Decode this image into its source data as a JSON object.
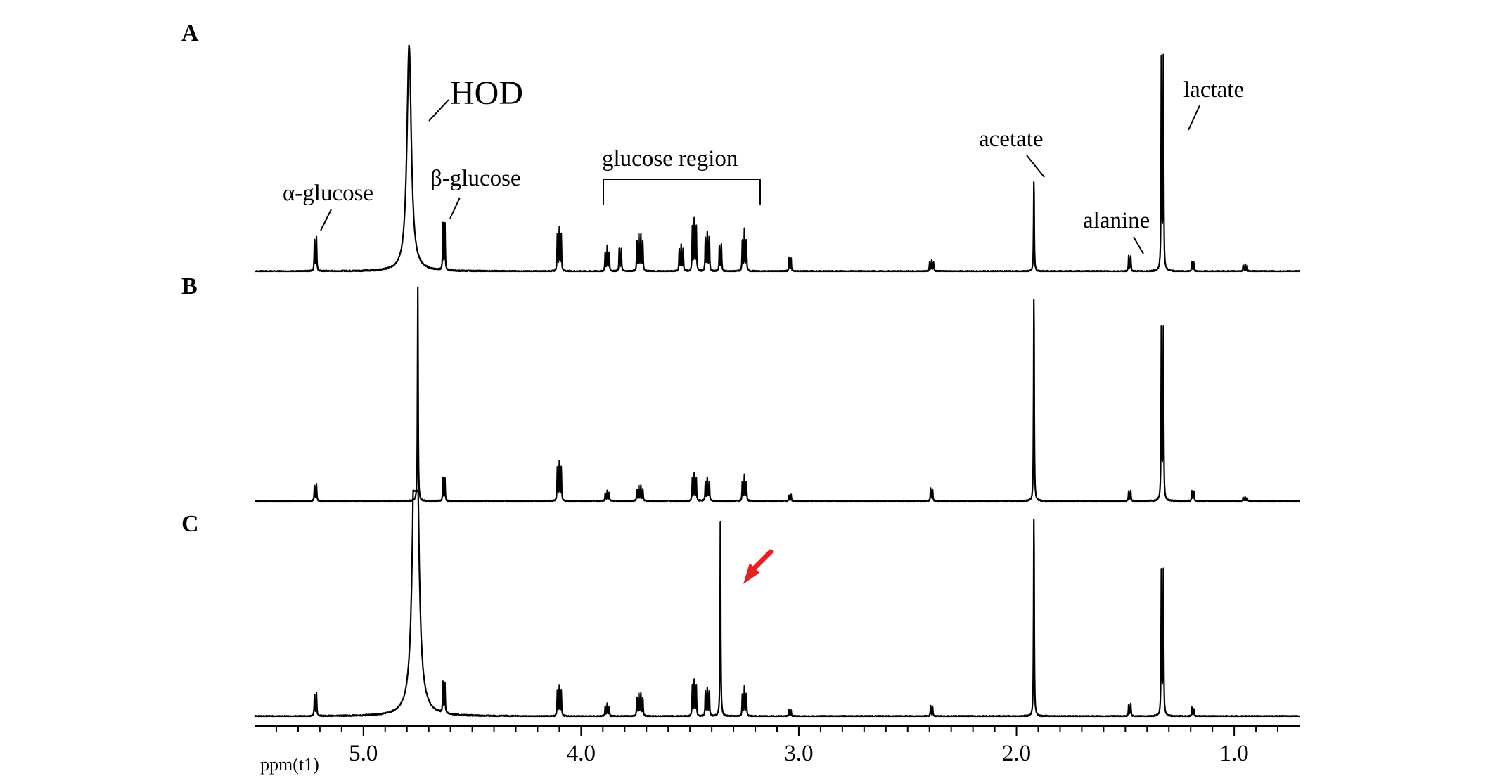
{
  "chart_data": {
    "type": "line",
    "title": "",
    "xlabel": "ppm(t1)",
    "ylabel": "",
    "x_reversed": true,
    "xlim": [
      5.5,
      0.7
    ],
    "xticks": [
      "5.0",
      "4.0",
      "3.0",
      "2.0",
      "1.0"
    ],
    "panels": [
      {
        "label": "A",
        "annotations": [
          "α-glucose",
          "HOD",
          "β-glucose",
          "glucose region",
          "acetate",
          "alanine",
          "lactate"
        ],
        "peaks": [
          {
            "ppm": 5.22,
            "height": 0.15,
            "mult": 2
          },
          {
            "ppm": 4.79,
            "height": 1.0,
            "mult": 1,
            "broad": true
          },
          {
            "ppm": 4.63,
            "height": 0.21,
            "mult": 2
          },
          {
            "ppm": 4.1,
            "height": 0.2,
            "mult": 3
          },
          {
            "ppm": 3.88,
            "height": 0.11,
            "mult": 3
          },
          {
            "ppm": 3.82,
            "height": 0.1,
            "mult": 2
          },
          {
            "ppm": 3.73,
            "height": 0.16,
            "mult": 4
          },
          {
            "ppm": 3.54,
            "height": 0.12,
            "mult": 3
          },
          {
            "ppm": 3.48,
            "height": 0.24,
            "mult": 3
          },
          {
            "ppm": 3.42,
            "height": 0.18,
            "mult": 3
          },
          {
            "ppm": 3.36,
            "height": 0.12,
            "mult": 2
          },
          {
            "ppm": 3.25,
            "height": 0.18,
            "mult": 3
          },
          {
            "ppm": 3.04,
            "height": 0.06,
            "mult": 2
          },
          {
            "ppm": 2.39,
            "height": 0.05,
            "mult": 3
          },
          {
            "ppm": 1.92,
            "height": 0.42,
            "mult": 1
          },
          {
            "ppm": 1.48,
            "height": 0.07,
            "mult": 2
          },
          {
            "ppm": 1.33,
            "height": 0.96,
            "mult": 2
          },
          {
            "ppm": 1.19,
            "height": 0.04,
            "mult": 2
          },
          {
            "ppm": 0.95,
            "height": 0.03,
            "mult": 3
          }
        ]
      },
      {
        "label": "B",
        "annotations": [],
        "peaks": [
          {
            "ppm": 5.22,
            "height": 0.08,
            "mult": 2
          },
          {
            "ppm": 4.75,
            "height": 1.0,
            "mult": 1
          },
          {
            "ppm": 4.63,
            "height": 0.11,
            "mult": 2
          },
          {
            "ppm": 4.1,
            "height": 0.19,
            "mult": 3
          },
          {
            "ppm": 3.88,
            "height": 0.05,
            "mult": 3
          },
          {
            "ppm": 3.73,
            "height": 0.07,
            "mult": 4
          },
          {
            "ppm": 3.48,
            "height": 0.13,
            "mult": 3
          },
          {
            "ppm": 3.42,
            "height": 0.11,
            "mult": 3
          },
          {
            "ppm": 3.25,
            "height": 0.12,
            "mult": 3
          },
          {
            "ppm": 3.04,
            "height": 0.03,
            "mult": 2
          },
          {
            "ppm": 2.39,
            "height": 0.06,
            "mult": 2
          },
          {
            "ppm": 1.92,
            "height": 1.0,
            "mult": 1
          },
          {
            "ppm": 1.48,
            "height": 0.05,
            "mult": 2
          },
          {
            "ppm": 1.33,
            "height": 0.82,
            "mult": 2
          },
          {
            "ppm": 1.19,
            "height": 0.05,
            "mult": 2
          },
          {
            "ppm": 0.95,
            "height": 0.02,
            "mult": 3
          }
        ]
      },
      {
        "label": "C",
        "annotations": [],
        "peaks": [
          {
            "ppm": 5.22,
            "height": 0.11,
            "mult": 2
          },
          {
            "ppm": 4.76,
            "height": 1.0,
            "mult": 2,
            "broad": true
          },
          {
            "ppm": 4.63,
            "height": 0.15,
            "mult": 2
          },
          {
            "ppm": 4.1,
            "height": 0.15,
            "mult": 3
          },
          {
            "ppm": 3.88,
            "height": 0.06,
            "mult": 3
          },
          {
            "ppm": 3.73,
            "height": 0.11,
            "mult": 4
          },
          {
            "ppm": 3.48,
            "height": 0.18,
            "mult": 3
          },
          {
            "ppm": 3.42,
            "height": 0.14,
            "mult": 3
          },
          {
            "ppm": 3.36,
            "height": 0.99,
            "mult": 1,
            "marked": true
          },
          {
            "ppm": 3.25,
            "height": 0.14,
            "mult": 3
          },
          {
            "ppm": 3.04,
            "height": 0.03,
            "mult": 2
          },
          {
            "ppm": 2.39,
            "height": 0.05,
            "mult": 2
          },
          {
            "ppm": 1.92,
            "height": 1.0,
            "mult": 1
          },
          {
            "ppm": 1.48,
            "height": 0.06,
            "mult": 2
          },
          {
            "ppm": 1.33,
            "height": 0.71,
            "mult": 2
          },
          {
            "ppm": 1.19,
            "height": 0.04,
            "mult": 2
          }
        ]
      }
    ]
  },
  "colors": {
    "spectrum": "#000000",
    "marker_arrow": "#e8201f"
  }
}
